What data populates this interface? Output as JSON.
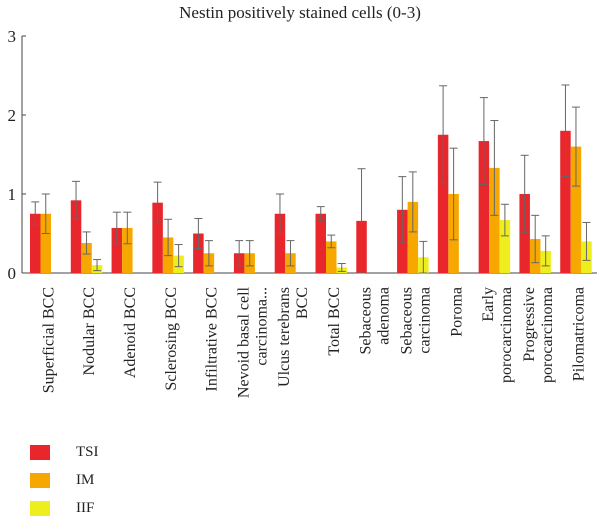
{
  "chart_data": {
    "type": "bar",
    "title": "Nestin positively stained cells (0-3)",
    "xlabel": "",
    "ylabel": "",
    "ylim": [
      0,
      3
    ],
    "yticks": [
      0,
      1,
      2,
      3
    ],
    "grid": false,
    "legend": "bottom-left",
    "categories": [
      [
        "Superficial BCC"
      ],
      [
        "Nodular BCC"
      ],
      [
        "Adenoid BCC"
      ],
      [
        "Sclerosing BCC"
      ],
      [
        "Infiltrative BCC"
      ],
      [
        "Nevoid basal cell",
        "carcinoma..."
      ],
      [
        "Ulcus terebrans",
        "BCC"
      ],
      [
        "Total BCC"
      ],
      [
        "Sebaceous",
        "adenoma"
      ],
      [
        "Sebaceous",
        "carcinoma"
      ],
      [
        "Poroma"
      ],
      [
        "Early",
        "porocarcinoma"
      ],
      [
        "Progressive",
        "porocarcinoma"
      ],
      [
        "Pilomatricoma"
      ]
    ],
    "series": [
      {
        "name": "TSI",
        "color": "#e8262b",
        "values": [
          0.75,
          0.92,
          0.57,
          0.89,
          0.5,
          0.25,
          0.75,
          0.75,
          0.66,
          0.8,
          1.75,
          1.67,
          1.0,
          1.8
        ],
        "errors": [
          0.15,
          0.24,
          0.2,
          0.26,
          0.19,
          0.16,
          0.25,
          0.09,
          0.66,
          0.42,
          0.62,
          0.55,
          0.49,
          0.58
        ]
      },
      {
        "name": "IM",
        "color": "#f7a800",
        "values": [
          0.75,
          0.38,
          0.57,
          0.45,
          0.25,
          0.25,
          0.25,
          0.4,
          null,
          0.9,
          1.0,
          1.33,
          0.43,
          1.6
        ],
        "errors": [
          0.25,
          0.14,
          0.2,
          0.23,
          0.16,
          0.16,
          0.16,
          0.08,
          null,
          0.38,
          0.58,
          0.6,
          0.3,
          0.5
        ]
      },
      {
        "name": "IIF",
        "color": "#eeee1f",
        "values": [
          null,
          0.1,
          null,
          0.22,
          null,
          null,
          null,
          0.07,
          null,
          0.2,
          null,
          0.67,
          0.28,
          0.4
        ],
        "errors": [
          null,
          0.07,
          null,
          0.14,
          null,
          null,
          null,
          0.05,
          null,
          0.2,
          null,
          0.2,
          0.19,
          0.24
        ]
      }
    ]
  }
}
